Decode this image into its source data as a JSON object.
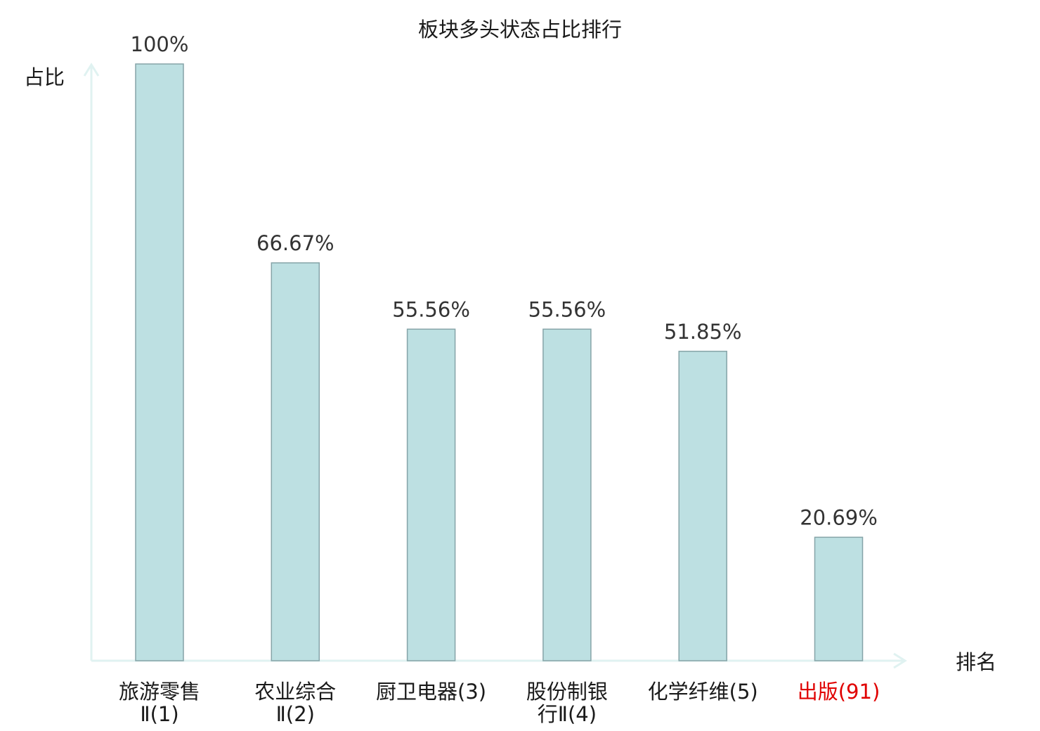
{
  "chart_data": {
    "type": "bar",
    "title": "板块多头状态占比排行",
    "ylabel": "占比",
    "xlabel": "排名",
    "ylim": [
      0,
      100
    ],
    "grid": false,
    "categories": [
      {
        "lines": [
          "旅游零售",
          "Ⅱ(1)"
        ],
        "highlight": false
      },
      {
        "lines": [
          "农业综合",
          "Ⅱ(2)"
        ],
        "highlight": false
      },
      {
        "lines": [
          "厨卫电器(3)"
        ],
        "highlight": false
      },
      {
        "lines": [
          "股份制银",
          "行Ⅱ(4)"
        ],
        "highlight": false
      },
      {
        "lines": [
          "化学纤维(5)"
        ],
        "highlight": false
      },
      {
        "lines": [
          "出版(91)"
        ],
        "highlight": true
      }
    ],
    "values": [
      100,
      66.67,
      55.56,
      55.56,
      51.85,
      20.69
    ],
    "value_labels": [
      "100%",
      "66.67%",
      "55.56%",
      "55.56%",
      "51.85%",
      "20.69%"
    ]
  },
  "colors": {
    "bar_fill": "#bde0e2",
    "bar_stroke": "#86a4a8",
    "axis": "#e0f2f1",
    "highlight": "#e00000",
    "text": "#1a1a1a"
  }
}
